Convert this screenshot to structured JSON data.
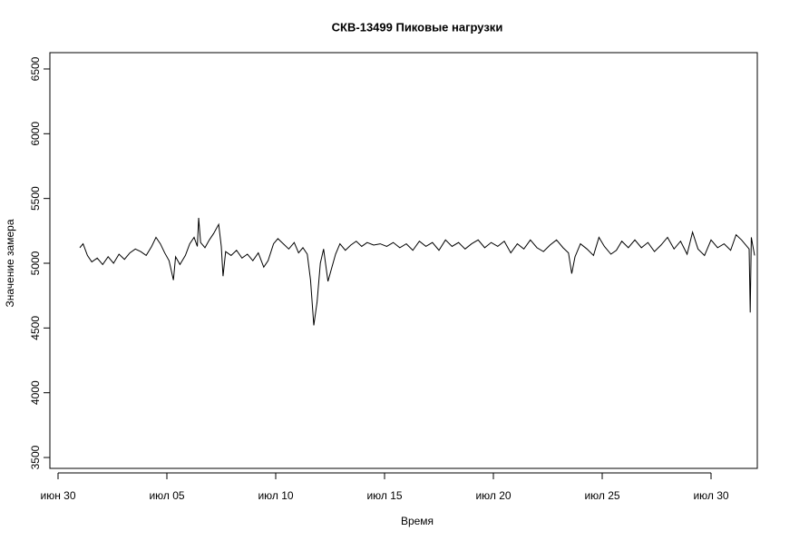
{
  "chart_data": {
    "type": "line",
    "title": "СКВ-13499 Пиковые нагрузки",
    "x_label": "Время",
    "y_label": "Значение замера",
    "xlim": [
      -0.375,
      32.125
    ],
    "ylim": [
      3416,
      6626
    ],
    "xticks": [
      {
        "value": 0,
        "label": "июн 30"
      },
      {
        "value": 5,
        "label": "июл 05"
      },
      {
        "value": 10,
        "label": "июл 10"
      },
      {
        "value": 15,
        "label": "июл 15"
      },
      {
        "value": 20,
        "label": "июл 20"
      },
      {
        "value": 25,
        "label": "июл 25"
      },
      {
        "value": 30,
        "label": "июл 30"
      }
    ],
    "yticks": [
      3500,
      4000,
      4500,
      5000,
      5500,
      6000,
      6500
    ],
    "grid": false,
    "x": [
      1.0,
      1.15,
      1.35,
      1.55,
      1.8,
      2.05,
      2.3,
      2.55,
      2.8,
      3.05,
      3.3,
      3.55,
      3.8,
      4.05,
      4.3,
      4.5,
      4.7,
      4.9,
      5.1,
      5.3,
      5.4,
      5.6,
      5.85,
      6.05,
      6.25,
      6.4,
      6.46,
      6.55,
      6.75,
      6.95,
      7.15,
      7.38,
      7.5,
      7.58,
      7.7,
      7.95,
      8.2,
      8.45,
      8.7,
      8.95,
      9.2,
      9.45,
      9.65,
      9.9,
      10.1,
      10.35,
      10.6,
      10.85,
      11.05,
      11.25,
      11.45,
      11.6,
      11.75,
      11.9,
      12.05,
      12.2,
      12.4,
      12.55,
      12.75,
      12.95,
      13.2,
      13.45,
      13.7,
      13.95,
      14.2,
      14.5,
      14.8,
      15.1,
      15.4,
      15.7,
      16.0,
      16.3,
      16.6,
      16.9,
      17.2,
      17.5,
      17.8,
      18.1,
      18.4,
      18.7,
      19.0,
      19.3,
      19.6,
      19.9,
      20.2,
      20.5,
      20.8,
      21.1,
      21.4,
      21.7,
      22.0,
      22.3,
      22.6,
      22.9,
      23.2,
      23.45,
      23.6,
      23.75,
      24.0,
      24.3,
      24.6,
      24.85,
      25.1,
      25.4,
      25.65,
      25.9,
      26.2,
      26.5,
      26.8,
      27.1,
      27.4,
      27.7,
      28.0,
      28.3,
      28.6,
      28.9,
      29.15,
      29.4,
      29.7,
      30.0,
      30.3,
      30.6,
      30.9,
      31.15,
      31.4,
      31.6,
      31.75,
      31.8,
      31.85,
      32.0
    ],
    "series": [
      {
        "color": "#000000",
        "values": [
          5120,
          5150,
          5060,
          5010,
          5040,
          4990,
          5050,
          5000,
          5070,
          5030,
          5080,
          5110,
          5090,
          5060,
          5130,
          5200,
          5150,
          5080,
          5020,
          4870,
          5050,
          4990,
          5060,
          5150,
          5200,
          5130,
          5350,
          5160,
          5120,
          5180,
          5230,
          5300,
          5130,
          4900,
          5090,
          5060,
          5100,
          5040,
          5070,
          5020,
          5080,
          4970,
          5020,
          5150,
          5190,
          5150,
          5110,
          5160,
          5080,
          5120,
          5070,
          4870,
          4520,
          4700,
          5000,
          5110,
          4860,
          4950,
          5070,
          5150,
          5100,
          5140,
          5170,
          5130,
          5160,
          5140,
          5150,
          5130,
          5160,
          5120,
          5150,
          5100,
          5170,
          5130,
          5160,
          5100,
          5180,
          5130,
          5160,
          5110,
          5150,
          5180,
          5120,
          5160,
          5130,
          5170,
          5080,
          5150,
          5110,
          5180,
          5120,
          5090,
          5140,
          5180,
          5120,
          5080,
          4920,
          5050,
          5150,
          5110,
          5060,
          5200,
          5130,
          5070,
          5100,
          5170,
          5120,
          5180,
          5120,
          5160,
          5090,
          5140,
          5200,
          5110,
          5170,
          5070,
          5240,
          5110,
          5060,
          5180,
          5120,
          5150,
          5100,
          5220,
          5180,
          5140,
          5110,
          4620,
          5200,
          5060
        ]
      }
    ]
  }
}
